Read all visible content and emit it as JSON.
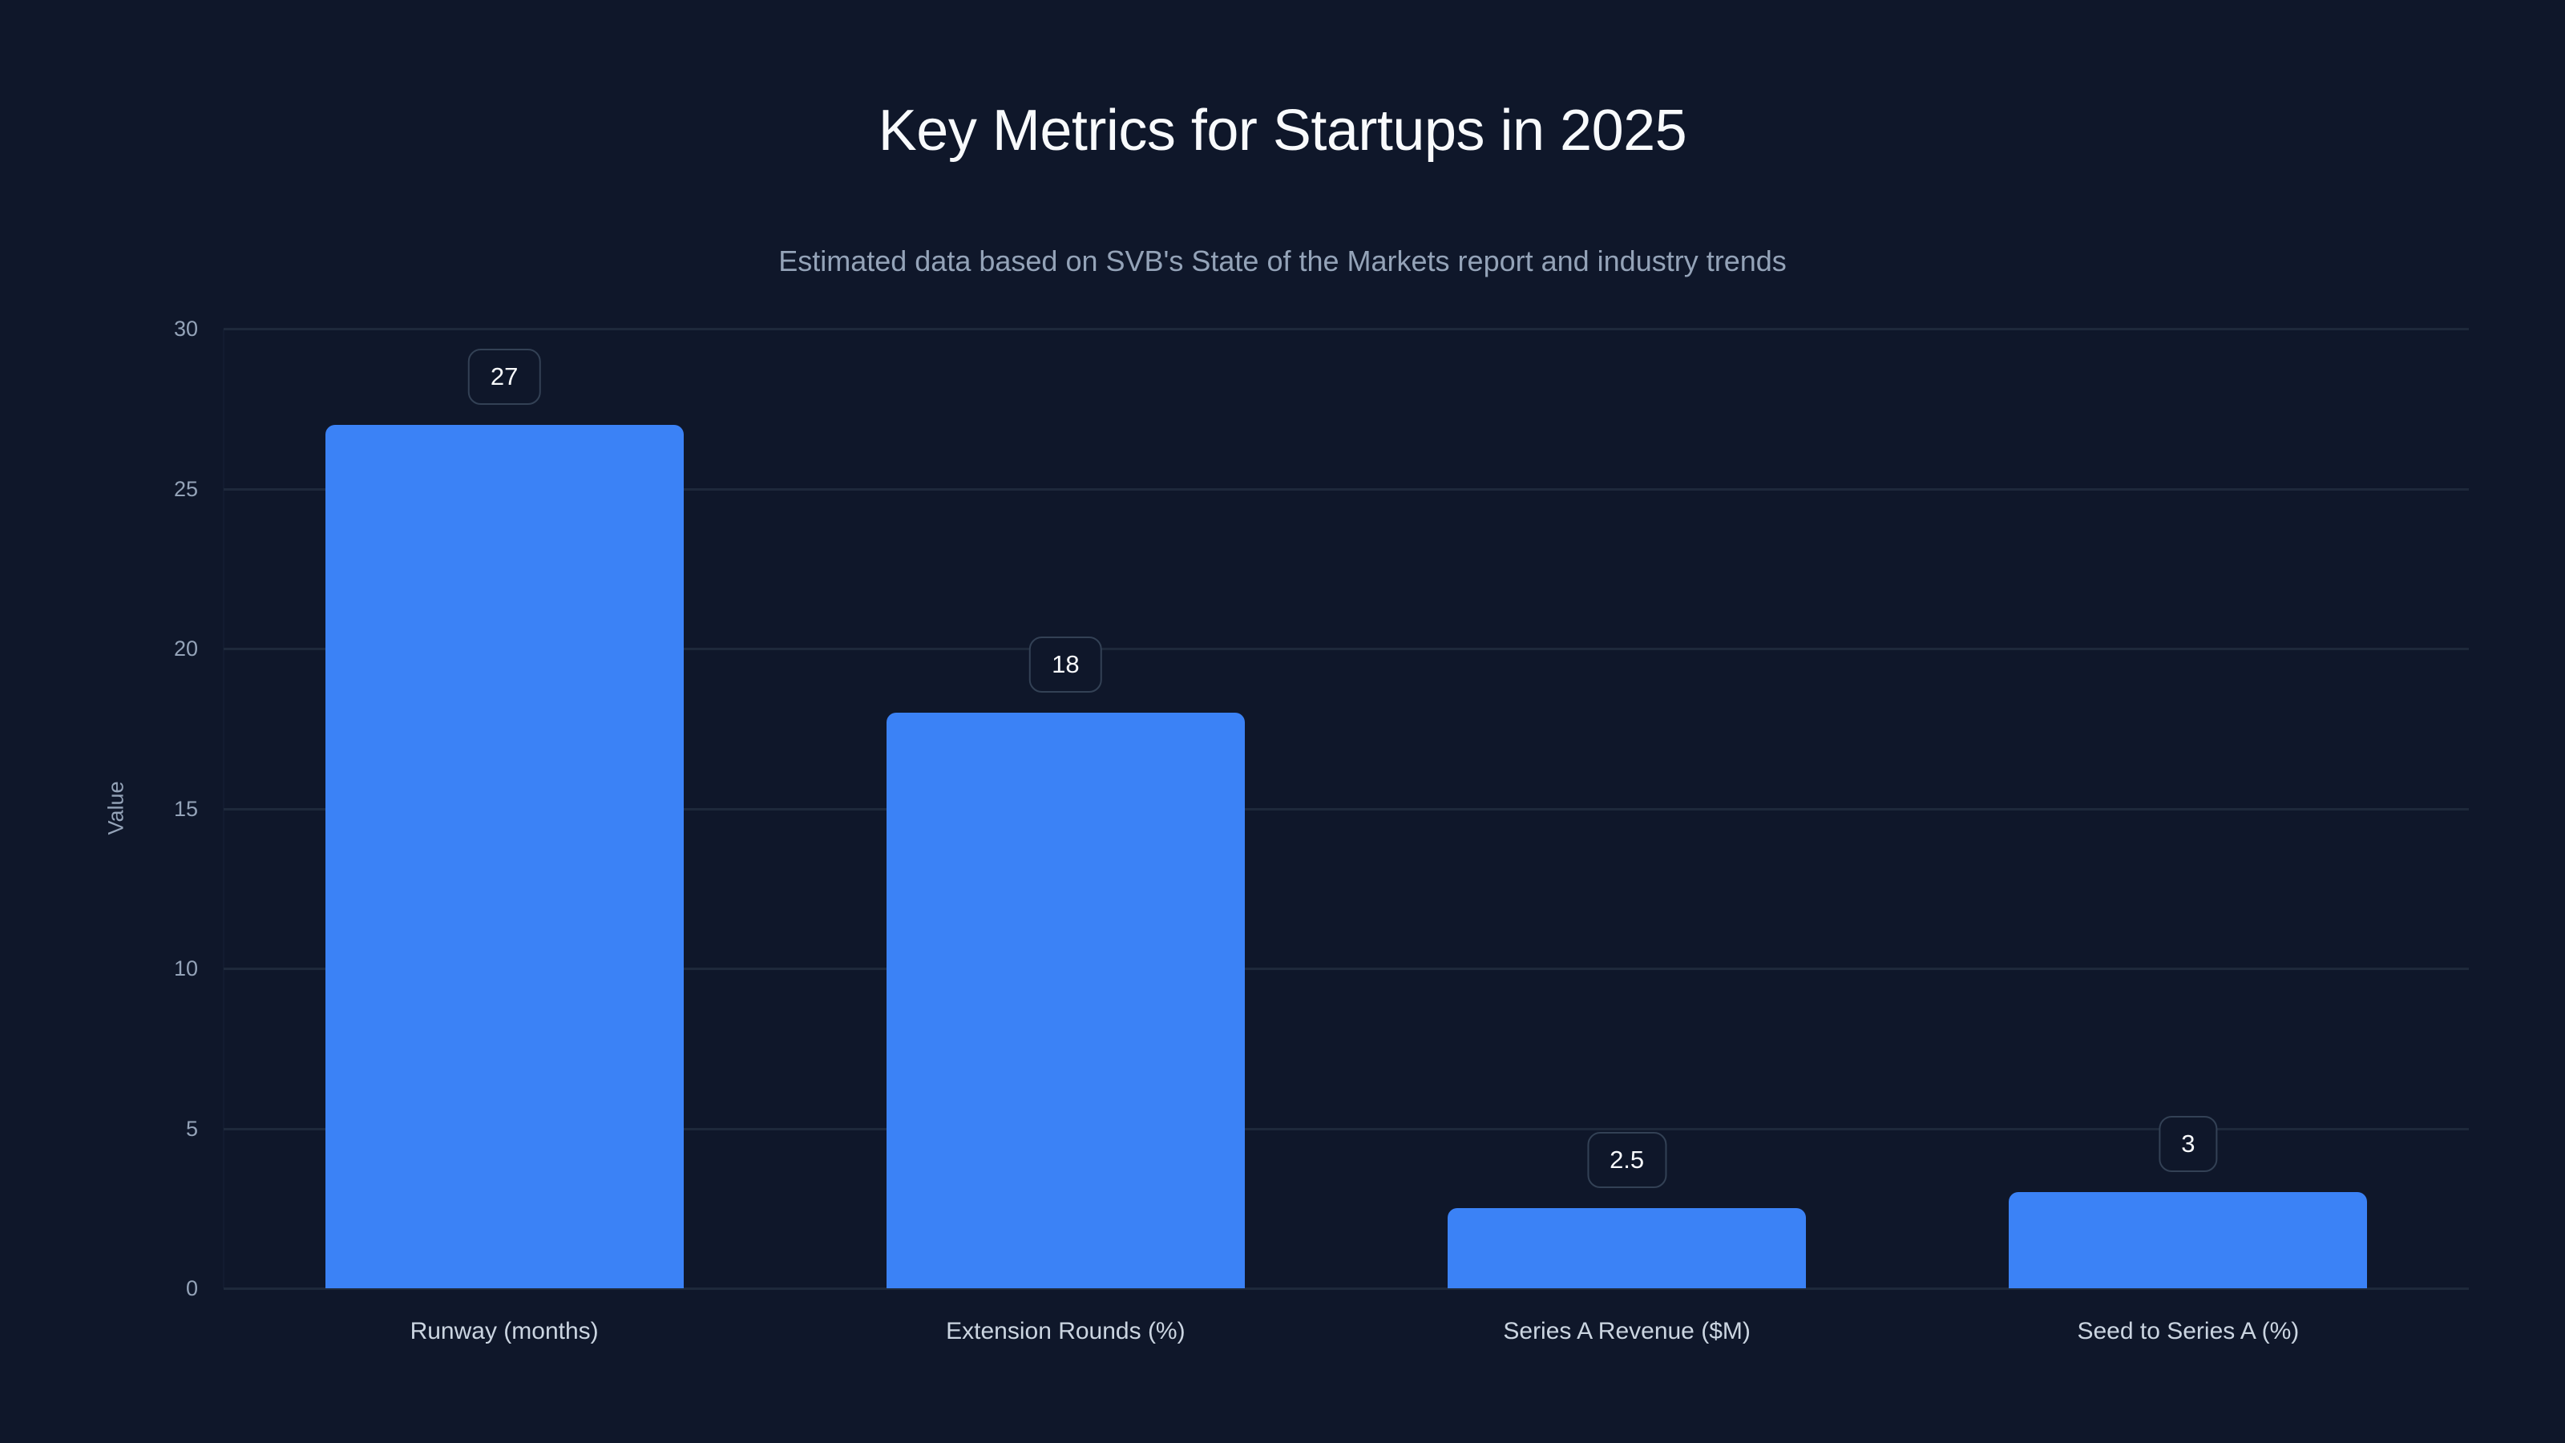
{
  "title": "Key Metrics for Startups in 2025",
  "subtitle": "Estimated data based on SVB's State of the Markets report and industry trends",
  "y_axis_title": "Value",
  "colors": {
    "background": "#0f172a",
    "bar": "#3b82f6",
    "gridline": "#1e293b",
    "badge_border": "#334155",
    "title": "#f8fafc",
    "subtitle": "#94a3b8",
    "tick_label": "#94a3b8",
    "category_label": "#cbd5e1"
  },
  "y_ticks": [
    "0",
    "5",
    "10",
    "15",
    "20",
    "25",
    "30"
  ],
  "bars": [
    {
      "label": "Runway (months)",
      "value": 27,
      "display": "27"
    },
    {
      "label": "Extension Rounds (%)",
      "value": 18,
      "display": "18"
    },
    {
      "label": "Series A Revenue ($M)",
      "value": 2.5,
      "display": "2.5"
    },
    {
      "label": "Seed to Series A (%)",
      "value": 3,
      "display": "3"
    }
  ],
  "chart_data": {
    "type": "bar",
    "title": "Key Metrics for Startups in 2025",
    "subtitle": "Estimated data based on SVB's State of the Markets report and industry trends",
    "categories": [
      "Runway (months)",
      "Extension Rounds (%)",
      "Series A Revenue ($M)",
      "Seed to Series A (%)"
    ],
    "values": [
      27,
      18,
      2.5,
      3
    ],
    "xlabel": "",
    "ylabel": "Value",
    "ylim": [
      0,
      30
    ],
    "yticks": [
      0,
      5,
      10,
      15,
      20,
      25,
      30
    ],
    "grid": true,
    "legend": null,
    "data_labels": true
  }
}
